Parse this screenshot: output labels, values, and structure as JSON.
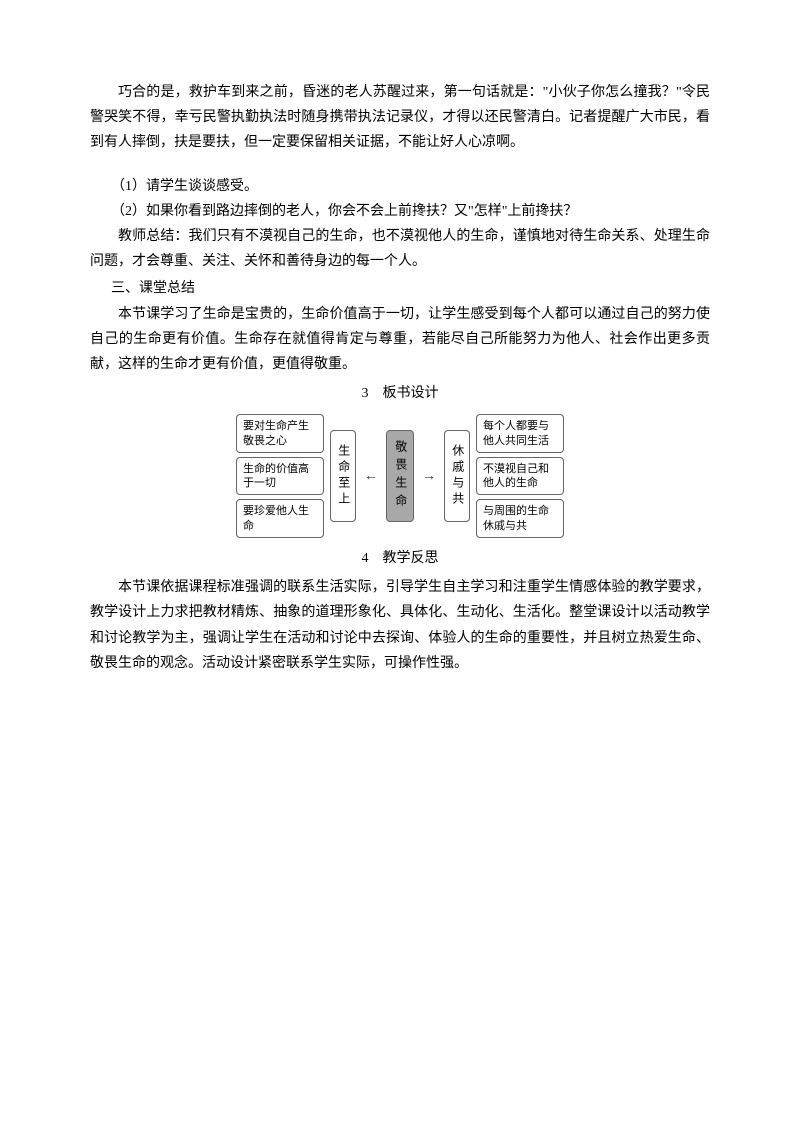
{
  "para1": "巧合的是，救护车到来之前，昏迷的老人苏醒过来，第一句话就是：\"小伙子你怎么撞我？\"令民警哭笑不得，幸亏民警执勤执法时随身携带执法记录仪，才得以还民警清白。记者提醒广大市民，看到有人摔倒，扶是要扶，但一定要保留相关证据，不能让好人心凉啊。",
  "q1": "（1）请学生谈谈感受。",
  "q2": "（2）如果你看到路边摔倒的老人，你会不会上前搀扶？又\"怎样\"上前搀扶？",
  "teacher_summary": "教师总结：我们只有不漠视自己的生命，也不漠视他人的生命，谨慎地对待生命关系、处理生命问题，才会尊重、关注、关怀和善待身边的每一个人。",
  "section3_title": "三、课堂总结",
  "section3_body": "本节课学习了生命是宝贵的，生命价值高于一切，让学生感受到每个人都可以通过自己的努力使自己的生命更有价值。生命存在就值得肯定与尊重，若能尽自己所能努力为他人、社会作出更多贡献，这样的生命才更有价值，更值得敬重。",
  "heading3": "3　板书设计",
  "heading4": "4　教学反思",
  "reflection": "本节课依据课程标准强调的联系生活实际，引导学生自主学习和注重学生情感体验的教学要求，教学设计上力求把教材精炼、抽象的道理形象化、具体化、生动化、生活化。整堂课设计以活动教学和讨论教学为主，强调让学生在活动和讨论中去探询、体验人的生命的重要性，并且树立热爱生命、敬畏生命的观念。活动设计紧密联系学生实际，可操作性强。",
  "diagram": {
    "left_boxes": [
      "要对生命产生敬畏之心",
      "生命的价值高于一切",
      "要珍爱他人生命"
    ],
    "left_tall": "生命至上",
    "center": "敬畏生命",
    "right_tall": "休戚与共",
    "right_boxes": [
      "每个人都要与他人共同生活",
      "不漠视自己和他人的生命",
      "与周围的生命休戚与共"
    ],
    "arrow_left": "←",
    "arrow_right": "→",
    "box_border_color": "#666666",
    "center_bg": "#a8a8a8",
    "box_bg": "#ffffff",
    "font_size_box": 11,
    "font_size_tall": 12
  }
}
